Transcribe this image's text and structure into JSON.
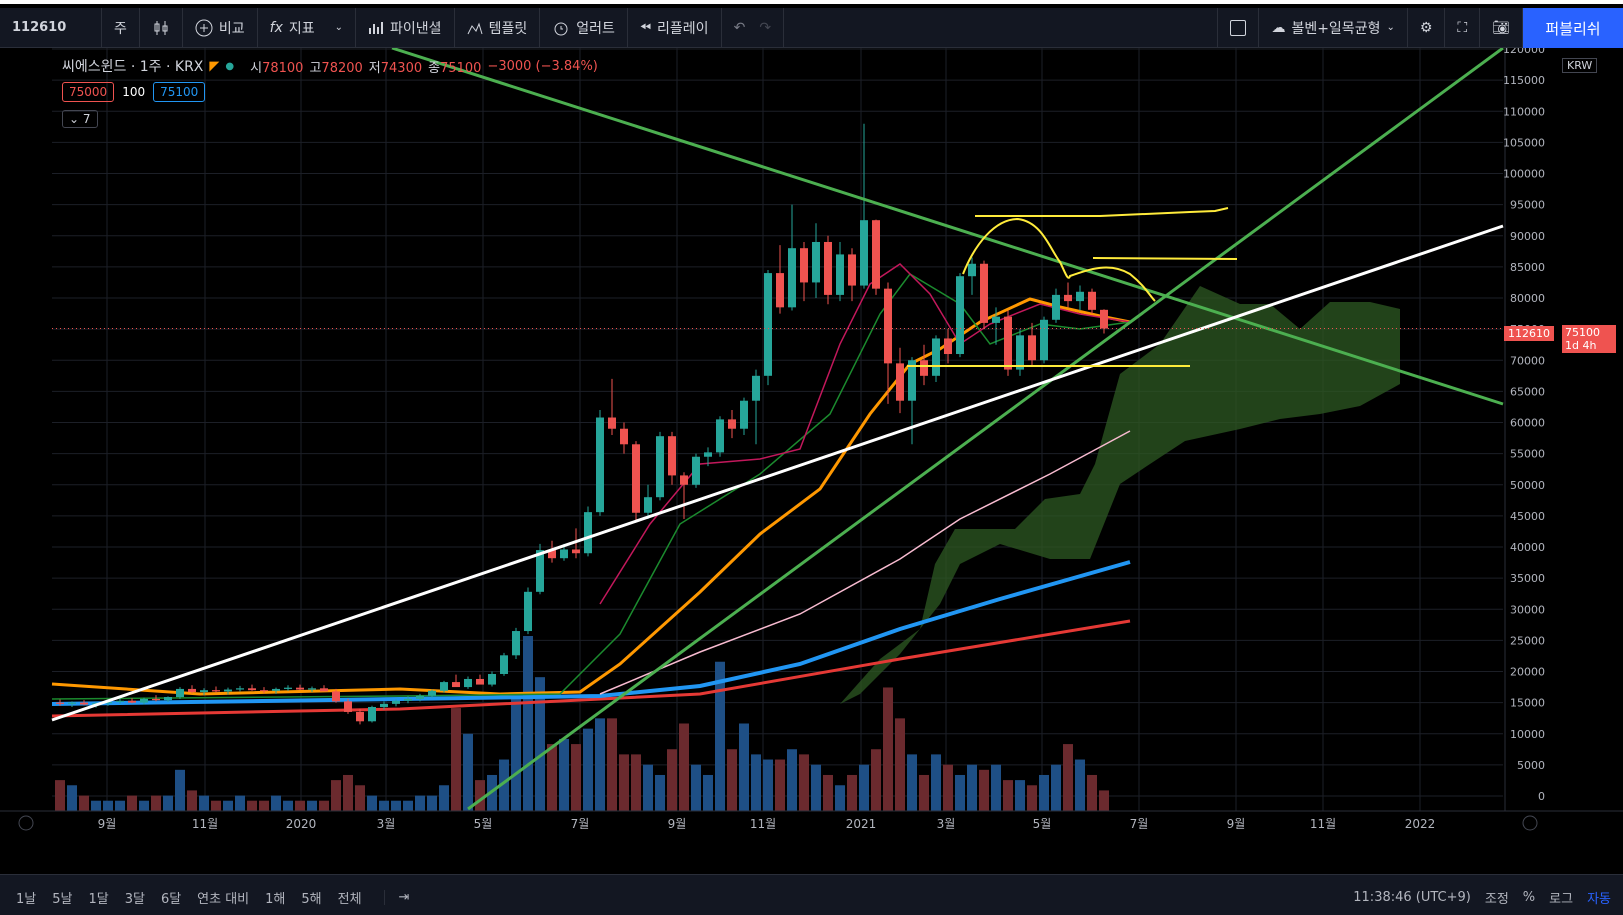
{
  "toolbar": {
    "symbol": "112610",
    "interval": "주",
    "compare": "비교",
    "indicators": "지표",
    "financials": "파이낸셜",
    "templates": "템플릿",
    "alert": "얼러트",
    "replay": "리플레이",
    "layout_name": "볼벤+일목균형",
    "publish": "퍼블리쉬"
  },
  "legend": {
    "name": "씨에스윈드 · 1주 · KRX",
    "open_label": "시",
    "open": "78100",
    "high_label": "고",
    "high": "78200",
    "low_label": "저",
    "low": "74300",
    "close_label": "종",
    "close": "75100",
    "change": "−3000 (−3.84%)",
    "bid": "75000",
    "qty": "100",
    "ask": "75100",
    "collapsed_count": "7"
  },
  "price_axis": {
    "currency": "KRW",
    "last_symbol": "112610",
    "last_price": "75100",
    "countdown": "1d 4h"
  },
  "bottombar": {
    "ranges": [
      "1날",
      "5날",
      "1달",
      "3달",
      "6달",
      "연초 대비",
      "1해",
      "5해",
      "전체"
    ],
    "time": "11:38:46 (UTC+9)",
    "adjust": "조정",
    "percent": "%",
    "log": "로그",
    "auto": "자동"
  },
  "colors": {
    "up": "#26a69a",
    "down": "#ef5350",
    "ma_orange": "#ff9800",
    "ma_blue": "#2196f3",
    "ma_red": "#e53935",
    "trend_green": "#4caf50",
    "trend_white": "#ffffff",
    "annot_yellow": "#ffeb3b",
    "cloud": "#2e5a23"
  },
  "chart_data": {
    "type": "candlestick",
    "title": "씨에스윈드 · 1주 · KRX",
    "ylim": [
      0,
      120000
    ],
    "y_ticks": [
      0,
      5000,
      10000,
      15000,
      20000,
      25000,
      30000,
      35000,
      40000,
      45000,
      50000,
      55000,
      60000,
      65000,
      70000,
      75000,
      80000,
      85000,
      90000,
      95000,
      100000,
      105000,
      110000,
      115000,
      120000
    ],
    "x_ticks": [
      "9월",
      "11월",
      "2020",
      "3월",
      "5월",
      "7월",
      "9월",
      "11월",
      "2021",
      "3월",
      "5월",
      "7월",
      "9월",
      "11월",
      "2022"
    ],
    "candles": [
      [
        15000,
        15500,
        14500,
        14800
      ],
      [
        14800,
        15200,
        14300,
        15000
      ],
      [
        15000,
        15400,
        14600,
        14700
      ],
      [
        14700,
        15100,
        14200,
        14900
      ],
      [
        14900,
        15300,
        14500,
        15100
      ],
      [
        15100,
        15600,
        14800,
        15300
      ],
      [
        15300,
        15700,
        14900,
        15000
      ],
      [
        15000,
        15800,
        14700,
        15600
      ],
      [
        15600,
        16200,
        15200,
        15400
      ],
      [
        15400,
        16000,
        15100,
        15900
      ],
      [
        15900,
        17500,
        15600,
        17200
      ],
      [
        17200,
        17800,
        16500,
        16700
      ],
      [
        16700,
        17300,
        16200,
        17000
      ],
      [
        17000,
        17600,
        16600,
        16800
      ],
      [
        16800,
        17400,
        16300,
        17100
      ],
      [
        17100,
        17700,
        16800,
        17300
      ],
      [
        17300,
        17900,
        16900,
        17000
      ],
      [
        17000,
        17500,
        16500,
        16900
      ],
      [
        16900,
        17400,
        16400,
        17200
      ],
      [
        17200,
        17800,
        16900,
        17400
      ],
      [
        17400,
        17900,
        17000,
        17100
      ],
      [
        17100,
        17600,
        16700,
        17300
      ],
      [
        17300,
        17800,
        16900,
        16800
      ],
      [
        16800,
        17200,
        15000,
        15200
      ],
      [
        15200,
        15600,
        13200,
        13500
      ],
      [
        13500,
        14000,
        11500,
        12000
      ],
      [
        12000,
        14500,
        11800,
        14300
      ],
      [
        14300,
        15200,
        13900,
        14800
      ],
      [
        14800,
        15500,
        14400,
        15300
      ],
      [
        15300,
        16000,
        14900,
        15600
      ],
      [
        15600,
        16400,
        15200,
        16100
      ],
      [
        16100,
        17100,
        15800,
        16900
      ],
      [
        16900,
        18500,
        16600,
        18300
      ],
      [
        18300,
        19500,
        17600,
        17500
      ],
      [
        17500,
        19200,
        17200,
        18800
      ],
      [
        18800,
        19500,
        18300,
        17900
      ],
      [
        17900,
        20000,
        17600,
        19600
      ],
      [
        19600,
        23000,
        19300,
        22600
      ],
      [
        22600,
        27000,
        22000,
        26500
      ],
      [
        26500,
        33500,
        26000,
        32800
      ],
      [
        32800,
        40500,
        32400,
        39500
      ],
      [
        39500,
        41000,
        37500,
        38200
      ],
      [
        38200,
        40500,
        37800,
        39600
      ],
      [
        39600,
        43000,
        38200,
        39000
      ],
      [
        39000,
        46500,
        38500,
        45600
      ],
      [
        45600,
        62000,
        45000,
        60800
      ],
      [
        60800,
        67000,
        58000,
        59000
      ],
      [
        59000,
        60000,
        55000,
        56500
      ],
      [
        56500,
        57000,
        44000,
        45500
      ],
      [
        45500,
        50000,
        44500,
        48000
      ],
      [
        48000,
        58500,
        47500,
        57800
      ],
      [
        57800,
        58500,
        50000,
        51500
      ],
      [
        51500,
        52000,
        44500,
        50000
      ],
      [
        50000,
        55000,
        49500,
        54500
      ],
      [
        54500,
        56000,
        53000,
        55200
      ],
      [
        55200,
        61000,
        54500,
        60500
      ],
      [
        60500,
        62000,
        57500,
        59000
      ],
      [
        59000,
        64000,
        58000,
        63500
      ],
      [
        63500,
        68500,
        56500,
        67500
      ],
      [
        67500,
        84500,
        66000,
        84000
      ],
      [
        84000,
        88500,
        77500,
        78500
      ],
      [
        78500,
        95000,
        78000,
        88000
      ],
      [
        88000,
        89000,
        79500,
        82500
      ],
      [
        82500,
        92000,
        80000,
        89000
      ],
      [
        89000,
        90000,
        79000,
        80500
      ],
      [
        80500,
        89000,
        79500,
        87000
      ],
      [
        87000,
        88000,
        79500,
        82000
      ],
      [
        82000,
        108000,
        81500,
        92500
      ],
      [
        92500,
        92600,
        80500,
        81500
      ],
      [
        81500,
        82500,
        63000,
        69500
      ],
      [
        69500,
        72000,
        61500,
        63500
      ],
      [
        63500,
        70500,
        56500,
        70000
      ],
      [
        70000,
        72500,
        66000,
        67500
      ],
      [
        67500,
        74000,
        66500,
        73500
      ],
      [
        73500,
        75000,
        69500,
        71000
      ],
      [
        71000,
        84000,
        70500,
        83500
      ],
      [
        83500,
        86500,
        80500,
        85500
      ],
      [
        85500,
        86000,
        75000,
        76000
      ],
      [
        76000,
        78500,
        72500,
        77000
      ],
      [
        77000,
        78000,
        67500,
        68500
      ],
      [
        68500,
        75000,
        67500,
        74000
      ],
      [
        74000,
        76000,
        69000,
        70000
      ],
      [
        70000,
        77000,
        69500,
        76500
      ],
      [
        76500,
        81500,
        76000,
        80500
      ],
      [
        80500,
        82500,
        78500,
        79500
      ],
      [
        79500,
        82000,
        78000,
        81000
      ],
      [
        81000,
        81500,
        77500,
        78100
      ],
      [
        78100,
        78200,
        74300,
        75100
      ]
    ],
    "volume_unit": "relative",
    "volume": [
      6,
      5,
      3,
      2,
      2,
      2,
      3,
      2,
      3,
      3,
      8,
      4,
      3,
      2,
      2,
      3,
      2,
      2,
      3,
      2,
      2,
      2,
      2,
      6,
      7,
      5,
      3,
      2,
      2,
      2,
      3,
      3,
      5,
      20,
      15,
      6,
      7,
      10,
      22,
      34,
      26,
      13,
      14,
      13,
      16,
      18,
      18,
      11,
      11,
      9,
      7,
      12,
      17,
      9,
      7,
      29,
      12,
      17,
      11,
      10,
      10,
      12,
      11,
      9,
      7,
      5,
      7,
      9,
      12,
      24,
      18,
      11,
      7,
      11,
      9,
      7,
      9,
      8,
      9,
      6,
      6,
      5,
      7,
      9,
      13,
      10,
      7,
      4
    ]
  }
}
